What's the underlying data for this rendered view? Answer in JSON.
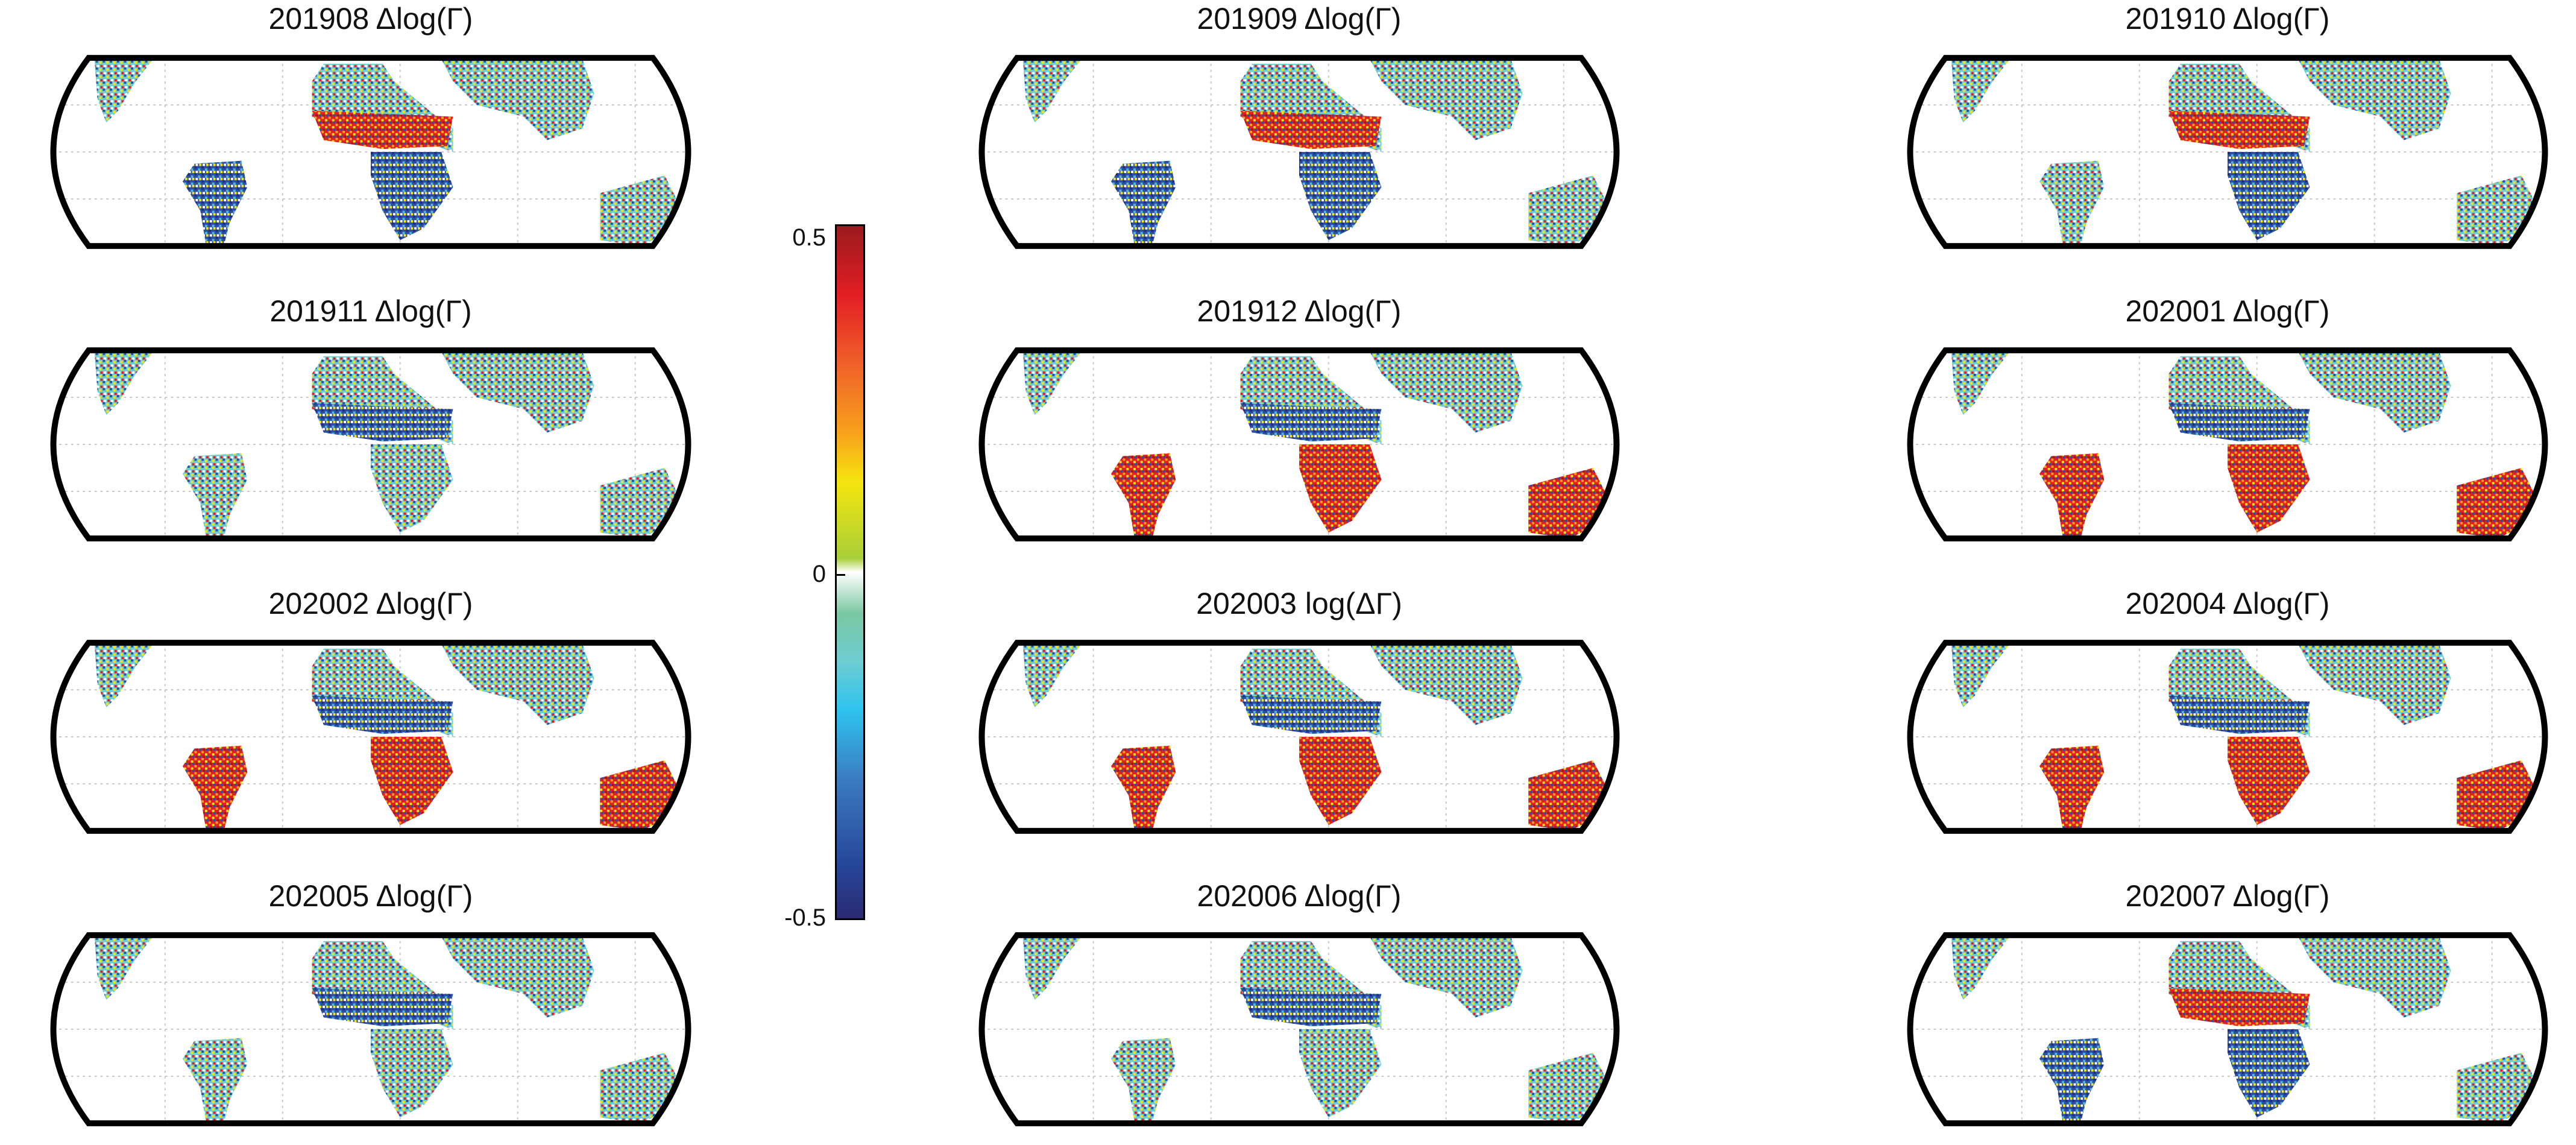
{
  "figure": {
    "panels": [
      {
        "id": "201908",
        "title": "201908 Δlog(Γ)",
        "pattern": "sahel-red"
      },
      {
        "id": "201909",
        "title": "201909 Δlog(Γ)",
        "pattern": "sahel-red"
      },
      {
        "id": "201910",
        "title": "201910 Δlog(Γ)",
        "pattern": "mixed-east-red"
      },
      {
        "id": "201911",
        "title": "201911 Δlog(Γ)",
        "pattern": "mixed"
      },
      {
        "id": "201912",
        "title": "201912 Δlog(Γ)",
        "pattern": "south-red"
      },
      {
        "id": "202001",
        "title": "202001 Δlog(Γ)",
        "pattern": "south-red"
      },
      {
        "id": "202002",
        "title": "202002 Δlog(Γ)",
        "pattern": "south-red"
      },
      {
        "id": "202003",
        "title": "202003 log(ΔΓ)",
        "pattern": "south-red"
      },
      {
        "id": "202004",
        "title": "202004 Δlog(Γ)",
        "pattern": "south-red"
      },
      {
        "id": "202005",
        "title": "202005 Δlog(Γ)",
        "pattern": "mixed"
      },
      {
        "id": "202006",
        "title": "202006 Δlog(Γ)",
        "pattern": "mixed"
      },
      {
        "id": "202007",
        "title": "202007 Δlog(Γ)",
        "pattern": "sahel-red"
      }
    ],
    "colorbar": {
      "ticks": [
        "0.5",
        "0",
        "-0.5"
      ],
      "min": -0.5,
      "max": 0.5,
      "colors": [
        "#2b2a72",
        "#26479b",
        "#3b7bbf",
        "#2ec2ef",
        "#6dcdd2",
        "#7ac7a2",
        "#ffffff",
        "#a9cf38",
        "#f5e50f",
        "#f8a21c",
        "#f0612a",
        "#e31e24",
        "#9b1b1e"
      ]
    }
  },
  "chart_data": {
    "type": "heatmap",
    "title": "",
    "subplots": [
      "201908 Δlog(Γ)",
      "201909 Δlog(Γ)",
      "201910 Δlog(Γ)",
      "201911 Δlog(Γ)",
      "201912 Δlog(Γ)",
      "202001 Δlog(Γ)",
      "202002 Δlog(Γ)",
      "202003 log(ΔΓ)",
      "202004 Δlog(Γ)",
      "202005 Δlog(Γ)",
      "202006 Δlog(Γ)",
      "202007 Δlog(Γ)"
    ],
    "layout": {
      "rows": 4,
      "cols": 3
    },
    "projection": "global map (Robinson-like), land-only values, tropics/subtropics",
    "colorbar": {
      "label": "",
      "ticks": [
        0.5,
        0,
        -0.5
      ],
      "range": [
        -0.5,
        0.5
      ],
      "colormap": "blue-cyan-white-yellow-red"
    },
    "xlabel": "",
    "ylabel": "",
    "grid": true,
    "legend": "vertical colorbar between first and second columns"
  }
}
